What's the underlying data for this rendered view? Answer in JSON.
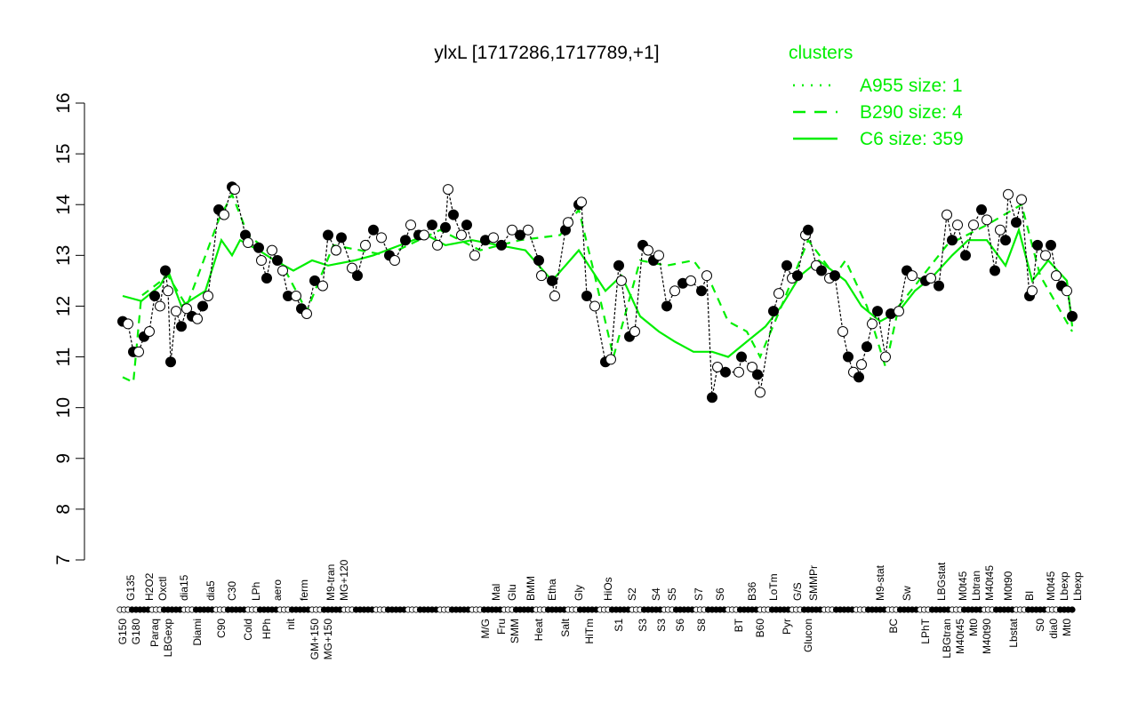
{
  "chart_data": {
    "type": "line",
    "title": "ylxL [1717286,1717789,+1]",
    "xlabel": "",
    "ylabel": "",
    "ylim": [
      7,
      16
    ],
    "xlim": [
      0,
      360
    ],
    "yticks": [
      7,
      8,
      9,
      10,
      11,
      12,
      13,
      14,
      15,
      16
    ],
    "grid": false,
    "legend": {
      "title": "clusters",
      "placement": "top-right",
      "entries": [
        {
          "label": "A955 size: 1",
          "style": "dotted"
        },
        {
          "label": "B290 size: 4",
          "style": "dashed"
        },
        {
          "label": "C6 size: 359",
          "style": "solid"
        }
      ]
    },
    "colors": {
      "clusters": "#00ee00",
      "points": "#000000"
    },
    "top_labels": [
      [
        4,
        "G135"
      ],
      [
        11,
        "H2O2"
      ],
      [
        16,
        "Oxctl"
      ],
      [
        24,
        "dia15"
      ],
      [
        34,
        "dia5"
      ],
      [
        42,
        "C30"
      ],
      [
        51,
        "LPh"
      ],
      [
        59,
        "aero"
      ],
      [
        69,
        "ferm"
      ],
      [
        79,
        "M9-tran"
      ],
      [
        81,
        "MG+120"
      ],
      [
        141,
        "Mal"
      ],
      [
        147,
        "Glu"
      ],
      [
        154,
        "BMM"
      ],
      [
        162,
        "Etha"
      ],
      [
        172,
        "Gly"
      ],
      [
        183,
        "HiOs"
      ],
      [
        192,
        "S2"
      ],
      [
        201,
        "S4"
      ],
      [
        207,
        "S5"
      ],
      [
        217,
        "S7"
      ],
      [
        225,
        "S6"
      ],
      [
        237,
        "B36"
      ],
      [
        245,
        "LoTm"
      ],
      [
        254,
        "G/S"
      ],
      [
        260,
        "SMMPr"
      ],
      [
        285,
        "M9-stat"
      ],
      [
        295,
        "Sw"
      ],
      [
        308,
        "LBGstat"
      ],
      [
        316,
        "M0t45"
      ],
      [
        320,
        "Lbtran"
      ],
      [
        322,
        "M40t45"
      ],
      [
        333,
        "M0t90"
      ],
      [
        341,
        "BI"
      ],
      [
        349,
        "M0t45"
      ],
      [
        353,
        "Lbexp"
      ],
      [
        355,
        "Lbexp"
      ]
    ],
    "bottom_labels": [
      [
        1,
        "G150"
      ],
      [
        6,
        "G180"
      ],
      [
        13,
        "Paraq"
      ],
      [
        18,
        "LBGexp"
      ],
      [
        29,
        "Diami"
      ],
      [
        38,
        "C90"
      ],
      [
        48,
        "Cold"
      ],
      [
        55,
        "HPh"
      ],
      [
        64,
        "nit"
      ],
      [
        73,
        "GM+150"
      ],
      [
        76,
        "MG+150"
      ],
      [
        137,
        "M/G"
      ],
      [
        143,
        "Fru"
      ],
      [
        147,
        "SMM"
      ],
      [
        157,
        "Heat"
      ],
      [
        167,
        "Salt"
      ],
      [
        176,
        "HiTm"
      ],
      [
        187,
        "S1"
      ],
      [
        196,
        "S3"
      ],
      [
        203,
        "S3"
      ],
      [
        210,
        "S6"
      ],
      [
        218,
        "S8"
      ],
      [
        232,
        "BT"
      ],
      [
        240,
        "B60"
      ],
      [
        250,
        "Pyr"
      ],
      [
        258,
        "Glucon"
      ],
      [
        290,
        "BC"
      ],
      [
        302,
        "LPhT"
      ],
      [
        310,
        "LBGtran"
      ],
      [
        313,
        "M40t45"
      ],
      [
        320,
        "Mt0"
      ],
      [
        323,
        "M40t90"
      ],
      [
        335,
        "Lbstat"
      ],
      [
        345,
        "S0"
      ],
      [
        350,
        "dia0"
      ],
      [
        355,
        "Mt0"
      ]
    ],
    "series": [
      {
        "label": "expression",
        "points": [
          [
            1,
            11.7
          ],
          [
            3,
            11.65
          ],
          [
            5,
            11.1
          ],
          [
            7,
            11.1
          ],
          [
            9,
            11.4
          ],
          [
            11,
            11.5
          ],
          [
            13,
            12.2
          ],
          [
            15,
            12.0
          ],
          [
            17,
            12.7
          ],
          [
            18,
            12.3
          ],
          [
            19,
            10.9
          ],
          [
            21,
            11.9
          ],
          [
            23,
            11.6
          ],
          [
            25,
            11.95
          ],
          [
            27,
            11.8
          ],
          [
            29,
            11.75
          ],
          [
            31,
            12.0
          ],
          [
            33,
            12.2
          ],
          [
            37,
            13.9
          ],
          [
            39,
            13.8
          ],
          [
            42,
            14.35
          ],
          [
            43,
            14.3
          ],
          [
            47,
            13.4
          ],
          [
            48,
            13.25
          ],
          [
            52,
            13.15
          ],
          [
            53,
            12.9
          ],
          [
            55,
            12.55
          ],
          [
            57,
            13.1
          ],
          [
            59,
            12.9
          ],
          [
            61,
            12.7
          ],
          [
            63,
            12.2
          ],
          [
            66,
            12.2
          ],
          [
            68,
            11.95
          ],
          [
            70,
            11.85
          ],
          [
            73,
            12.5
          ],
          [
            76,
            12.4
          ],
          [
            78,
            13.4
          ],
          [
            81,
            13.1
          ],
          [
            83,
            13.35
          ],
          [
            87,
            12.75
          ],
          [
            89,
            12.6
          ],
          [
            92,
            13.2
          ],
          [
            95,
            13.5
          ],
          [
            98,
            13.35
          ],
          [
            101,
            13.0
          ],
          [
            103,
            12.9
          ],
          [
            107,
            13.3
          ],
          [
            109,
            13.6
          ],
          [
            112,
            13.4
          ],
          [
            114,
            13.4
          ],
          [
            117,
            13.6
          ],
          [
            119,
            13.2
          ],
          [
            122,
            13.55
          ],
          [
            123,
            14.3
          ],
          [
            125,
            13.8
          ],
          [
            128,
            13.4
          ],
          [
            130,
            13.6
          ],
          [
            133,
            13.0
          ],
          [
            137,
            13.3
          ],
          [
            140,
            13.35
          ],
          [
            143,
            13.2
          ],
          [
            147,
            13.5
          ],
          [
            150,
            13.4
          ],
          [
            153,
            13.5
          ],
          [
            157,
            12.9
          ],
          [
            158,
            12.6
          ],
          [
            162,
            12.5
          ],
          [
            163,
            12.2
          ],
          [
            167,
            13.5
          ],
          [
            168,
            13.65
          ],
          [
            172,
            14.0
          ],
          [
            173,
            14.05
          ],
          [
            175,
            12.2
          ],
          [
            178,
            12.0
          ],
          [
            182,
            10.9
          ],
          [
            184,
            10.95
          ],
          [
            187,
            12.8
          ],
          [
            188,
            12.5
          ],
          [
            191,
            11.4
          ],
          [
            193,
            11.5
          ],
          [
            196,
            13.2
          ],
          [
            198,
            13.1
          ],
          [
            200,
            12.9
          ],
          [
            202,
            13.0
          ],
          [
            205,
            12.0
          ],
          [
            208,
            12.3
          ],
          [
            211,
            12.45
          ],
          [
            214,
            12.5
          ],
          [
            218,
            12.3
          ],
          [
            220,
            12.6
          ],
          [
            222,
            10.2
          ],
          [
            224,
            10.8
          ],
          [
            227,
            10.7
          ],
          [
            232,
            10.7
          ],
          [
            233,
            11.0
          ],
          [
            237,
            10.8
          ],
          [
            239,
            10.65
          ],
          [
            240,
            10.3
          ],
          [
            245,
            11.9
          ],
          [
            247,
            12.25
          ],
          [
            250,
            12.8
          ],
          [
            252,
            12.55
          ],
          [
            254,
            12.6
          ],
          [
            257,
            13.4
          ],
          [
            258,
            13.5
          ],
          [
            261,
            12.8
          ],
          [
            263,
            12.7
          ],
          [
            266,
            12.55
          ],
          [
            268,
            12.6
          ],
          [
            271,
            11.5
          ],
          [
            273,
            11.0
          ],
          [
            275,
            10.7
          ],
          [
            277,
            10.6
          ],
          [
            278,
            10.85
          ],
          [
            280,
            11.2
          ],
          [
            282,
            11.65
          ],
          [
            284,
            11.9
          ],
          [
            287,
            11.0
          ],
          [
            289,
            11.85
          ],
          [
            292,
            11.9
          ],
          [
            295,
            12.7
          ],
          [
            297,
            12.6
          ],
          [
            302,
            12.5
          ],
          [
            304,
            12.55
          ],
          [
            307,
            12.4
          ],
          [
            310,
            13.8
          ],
          [
            312,
            13.3
          ],
          [
            314,
            13.6
          ],
          [
            317,
            13.0
          ],
          [
            320,
            13.6
          ],
          [
            323,
            13.9
          ],
          [
            325,
            13.7
          ],
          [
            328,
            12.7
          ],
          [
            330,
            13.5
          ],
          [
            332,
            13.3
          ],
          [
            333,
            14.2
          ],
          [
            336,
            13.65
          ],
          [
            338,
            14.1
          ],
          [
            341,
            12.2
          ],
          [
            342,
            12.3
          ],
          [
            344,
            13.2
          ],
          [
            347,
            13.0
          ],
          [
            349,
            13.2
          ],
          [
            351,
            12.6
          ],
          [
            353,
            12.4
          ],
          [
            355,
            12.3
          ],
          [
            357,
            11.8
          ]
        ]
      },
      {
        "label": "B290 size: 4",
        "style": "dashed",
        "points": [
          [
            1,
            10.6
          ],
          [
            5,
            10.5
          ],
          [
            8,
            12.2
          ],
          [
            18,
            12.6
          ],
          [
            25,
            12.0
          ],
          [
            37,
            13.7
          ],
          [
            42,
            14.2
          ],
          [
            48,
            13.4
          ],
          [
            60,
            12.9
          ],
          [
            70,
            11.9
          ],
          [
            80,
            13.2
          ],
          [
            100,
            13.0
          ],
          [
            120,
            13.5
          ],
          [
            135,
            13.1
          ],
          [
            150,
            13.3
          ],
          [
            165,
            13.4
          ],
          [
            172,
            13.9
          ],
          [
            178,
            12.6
          ],
          [
            185,
            11.0
          ],
          [
            195,
            12.9
          ],
          [
            205,
            12.8
          ],
          [
            215,
            12.9
          ],
          [
            222,
            12.4
          ],
          [
            228,
            11.7
          ],
          [
            235,
            11.5
          ],
          [
            240,
            11.0
          ],
          [
            248,
            12.0
          ],
          [
            258,
            13.3
          ],
          [
            268,
            12.6
          ],
          [
            272,
            12.9
          ],
          [
            280,
            12.0
          ],
          [
            287,
            10.8
          ],
          [
            292,
            12.0
          ],
          [
            310,
            13.2
          ],
          [
            325,
            13.6
          ],
          [
            338,
            14.0
          ],
          [
            345,
            12.6
          ],
          [
            357,
            11.5
          ]
        ]
      },
      {
        "label": "C6 size: 359",
        "style": "solid",
        "points": [
          [
            1,
            12.2
          ],
          [
            8,
            12.1
          ],
          [
            15,
            12.4
          ],
          [
            18,
            12.7
          ],
          [
            23,
            12.0
          ],
          [
            32,
            12.3
          ],
          [
            38,
            13.3
          ],
          [
            42,
            13.0
          ],
          [
            45,
            13.3
          ],
          [
            52,
            13.1
          ],
          [
            58,
            12.9
          ],
          [
            65,
            12.7
          ],
          [
            72,
            12.9
          ],
          [
            78,
            12.8
          ],
          [
            88,
            12.9
          ],
          [
            95,
            13.0
          ],
          [
            105,
            13.2
          ],
          [
            115,
            13.4
          ],
          [
            122,
            13.2
          ],
          [
            132,
            13.3
          ],
          [
            142,
            13.2
          ],
          [
            152,
            13.1
          ],
          [
            162,
            12.5
          ],
          [
            172,
            13.1
          ],
          [
            182,
            12.3
          ],
          [
            188,
            12.6
          ],
          [
            195,
            11.8
          ],
          [
            202,
            11.5
          ],
          [
            208,
            11.3
          ],
          [
            215,
            11.1
          ],
          [
            222,
            11.1
          ],
          [
            228,
            11.0
          ],
          [
            235,
            11.3
          ],
          [
            242,
            11.6
          ],
          [
            248,
            12.0
          ],
          [
            255,
            12.6
          ],
          [
            262,
            12.9
          ],
          [
            272,
            12.5
          ],
          [
            278,
            12.0
          ],
          [
            285,
            11.7
          ],
          [
            292,
            11.9
          ],
          [
            298,
            12.3
          ],
          [
            305,
            12.6
          ],
          [
            312,
            13.0
          ],
          [
            318,
            13.3
          ],
          [
            325,
            13.3
          ],
          [
            332,
            12.8
          ],
          [
            337,
            13.5
          ],
          [
            342,
            12.5
          ],
          [
            348,
            12.9
          ],
          [
            355,
            12.5
          ],
          [
            357,
            11.6
          ]
        ]
      }
    ]
  }
}
